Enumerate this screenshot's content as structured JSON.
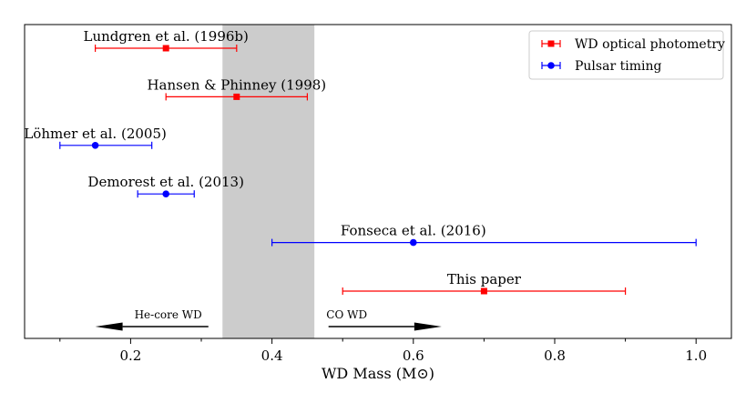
{
  "chart_data": {
    "type": "scatter",
    "title": "",
    "xlabel": "WD Mass (M⊙)",
    "ylabel": "",
    "xlim": [
      0.05,
      1.05
    ],
    "xticks": [
      "0.2",
      "0.4",
      "0.6",
      "0.8",
      "1.0"
    ],
    "grid": false,
    "legend_position": "top-right",
    "shaded_region": {
      "x0": 0.33,
      "x1": 0.46,
      "color": "#cccccc"
    },
    "series": [
      {
        "name": "WD optical photometry",
        "color": "#ff0000",
        "marker": "square"
      },
      {
        "name": "Pulsar timing",
        "color": "#0000ff",
        "marker": "circle"
      }
    ],
    "points": [
      {
        "label": "Lundgren et al. (1996b)",
        "series": 0,
        "x": 0.25,
        "xerr_low": 0.15,
        "xerr_high": 0.35,
        "row": 6
      },
      {
        "label": "Hansen & Phinney (1998)",
        "series": 0,
        "x": 0.35,
        "xerr_low": 0.25,
        "xerr_high": 0.45,
        "row": 5
      },
      {
        "label": "Löhmer et al. (2005)",
        "series": 1,
        "x": 0.15,
        "xerr_low": 0.1,
        "xerr_high": 0.23,
        "row": 4
      },
      {
        "label": "Demorest et al. (2013)",
        "series": 1,
        "x": 0.25,
        "xerr_low": 0.21,
        "xerr_high": 0.29,
        "row": 3
      },
      {
        "label": "Fonseca et al. (2016)",
        "series": 1,
        "x": 0.6,
        "xerr_low": 0.4,
        "xerr_high": 1.0,
        "row": 2
      },
      {
        "label": "This paper",
        "series": 0,
        "x": 0.7,
        "xerr_low": 0.5,
        "xerr_high": 0.9,
        "row": 1
      }
    ],
    "arrows": [
      {
        "label": "He-core WD",
        "from": 0.31,
        "to": 0.15
      },
      {
        "label": "CO WD",
        "from": 0.48,
        "to": 0.64
      }
    ]
  }
}
